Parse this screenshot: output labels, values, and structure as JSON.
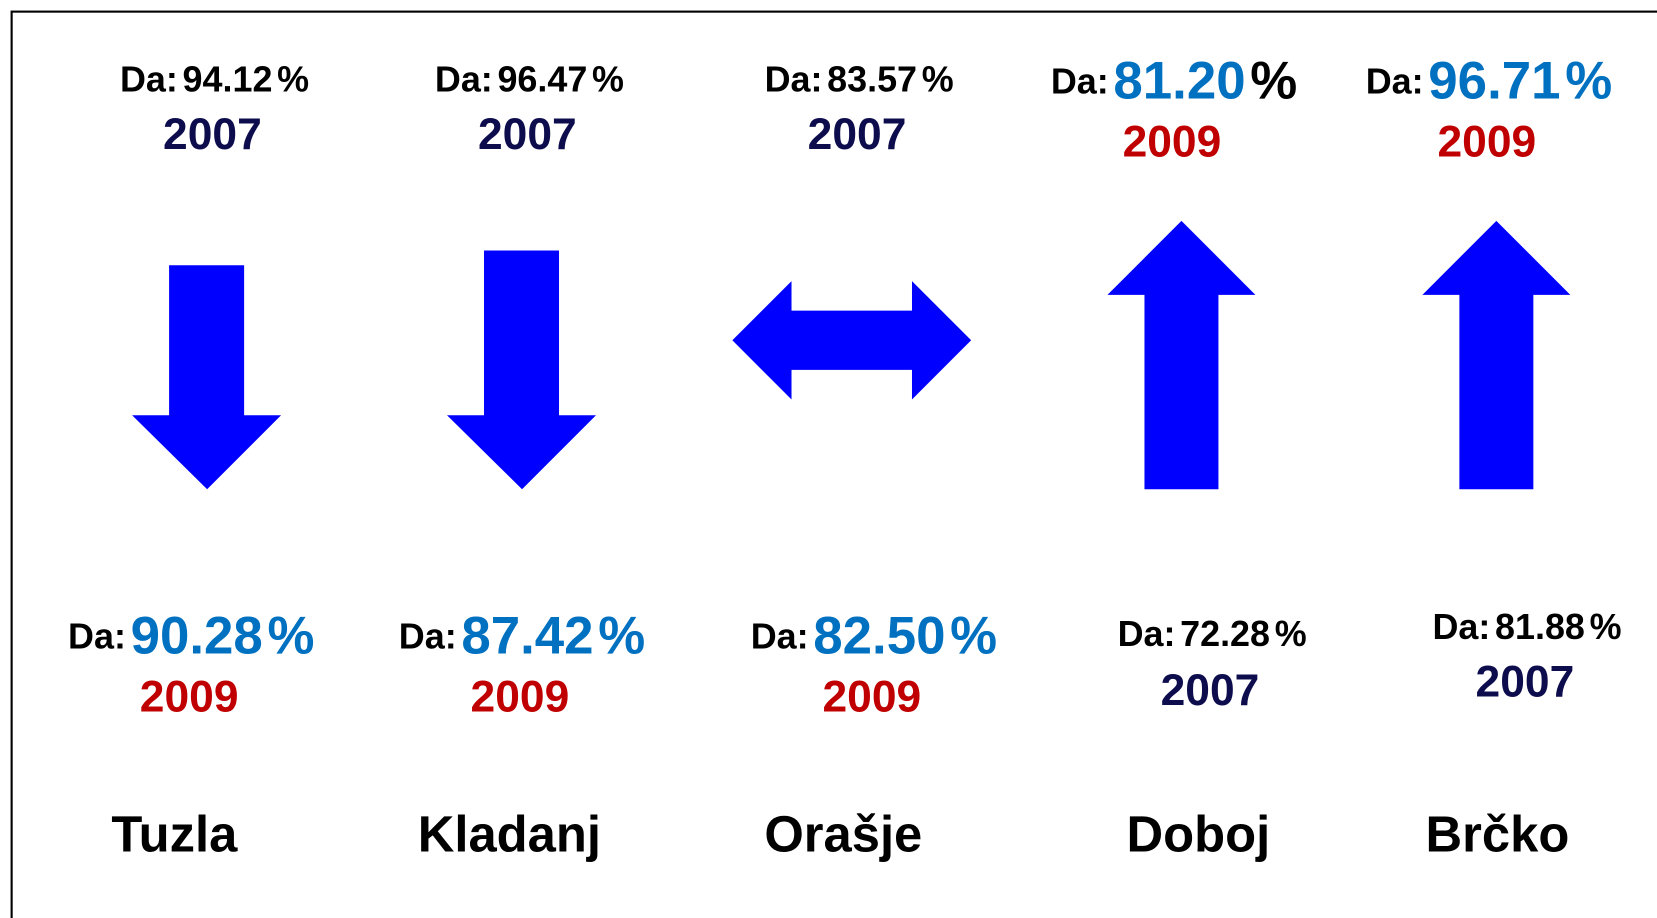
{
  "columns": [
    {
      "city": "Tuzla",
      "arrow": "down",
      "top": {
        "prefix": "Da:",
        "number": "94.12",
        "unit": "%",
        "year": "2007",
        "big": false,
        "number_color": "#000000",
        "unit_color": "#000000",
        "year_color": "#0d0d4d"
      },
      "bottom": {
        "prefix": "Da:",
        "number": "90.28",
        "unit": "%",
        "year": "2009",
        "big": true,
        "number_color": "#0070c0",
        "unit_color": "#0070c0",
        "year_color": "#c00000"
      }
    },
    {
      "city": "Kladanj",
      "arrow": "down",
      "top": {
        "prefix": "Da:",
        "number": "96.47",
        "unit": "%",
        "year": "2007",
        "big": false,
        "number_color": "#000000",
        "unit_color": "#000000",
        "year_color": "#0d0d4d"
      },
      "bottom": {
        "prefix": "Da:",
        "number": "87.42",
        "unit": "%",
        "year": "2009",
        "big": true,
        "number_color": "#0070c0",
        "unit_color": "#0070c0",
        "year_color": "#c00000"
      }
    },
    {
      "city": "Orašje",
      "arrow": "both",
      "top": {
        "prefix": "Da:",
        "number": "83.57",
        "unit": "%",
        "year": "2007",
        "big": false,
        "number_color": "#000000",
        "unit_color": "#000000",
        "year_color": "#0d0d4d"
      },
      "bottom": {
        "prefix": "Da:",
        "number": "82.50",
        "unit": "%",
        "year": "2009",
        "big": true,
        "number_color": "#0070c0",
        "unit_color": "#0070c0",
        "year_color": "#c00000"
      }
    },
    {
      "city": "Doboj",
      "arrow": "up",
      "top": {
        "prefix": "Da:",
        "number": "81.20",
        "unit": "%",
        "year": "2009",
        "big": true,
        "number_color": "#0070c0",
        "unit_color": "#000000",
        "year_color": "#c00000"
      },
      "bottom": {
        "prefix": "Da:",
        "number": "72.28",
        "unit": "%",
        "year": "2007",
        "big": false,
        "number_color": "#000000",
        "unit_color": "#000000",
        "year_color": "#0d0d4d"
      }
    },
    {
      "city": "Brčko",
      "arrow": "up",
      "top": {
        "prefix": "Da:",
        "number": "96.71",
        "unit": "%",
        "year": "2009",
        "big": true,
        "number_color": "#0070c0",
        "unit_color": "#0070c0",
        "year_color": "#c00000"
      },
      "bottom": {
        "prefix": "Da:",
        "number": "81.88",
        "unit": "%",
        "year": "2007",
        "big": false,
        "number_color": "#000000",
        "unit_color": "#000000",
        "year_color": "#0d0d4d"
      }
    }
  ],
  "arrow_color": "#0000ff"
}
